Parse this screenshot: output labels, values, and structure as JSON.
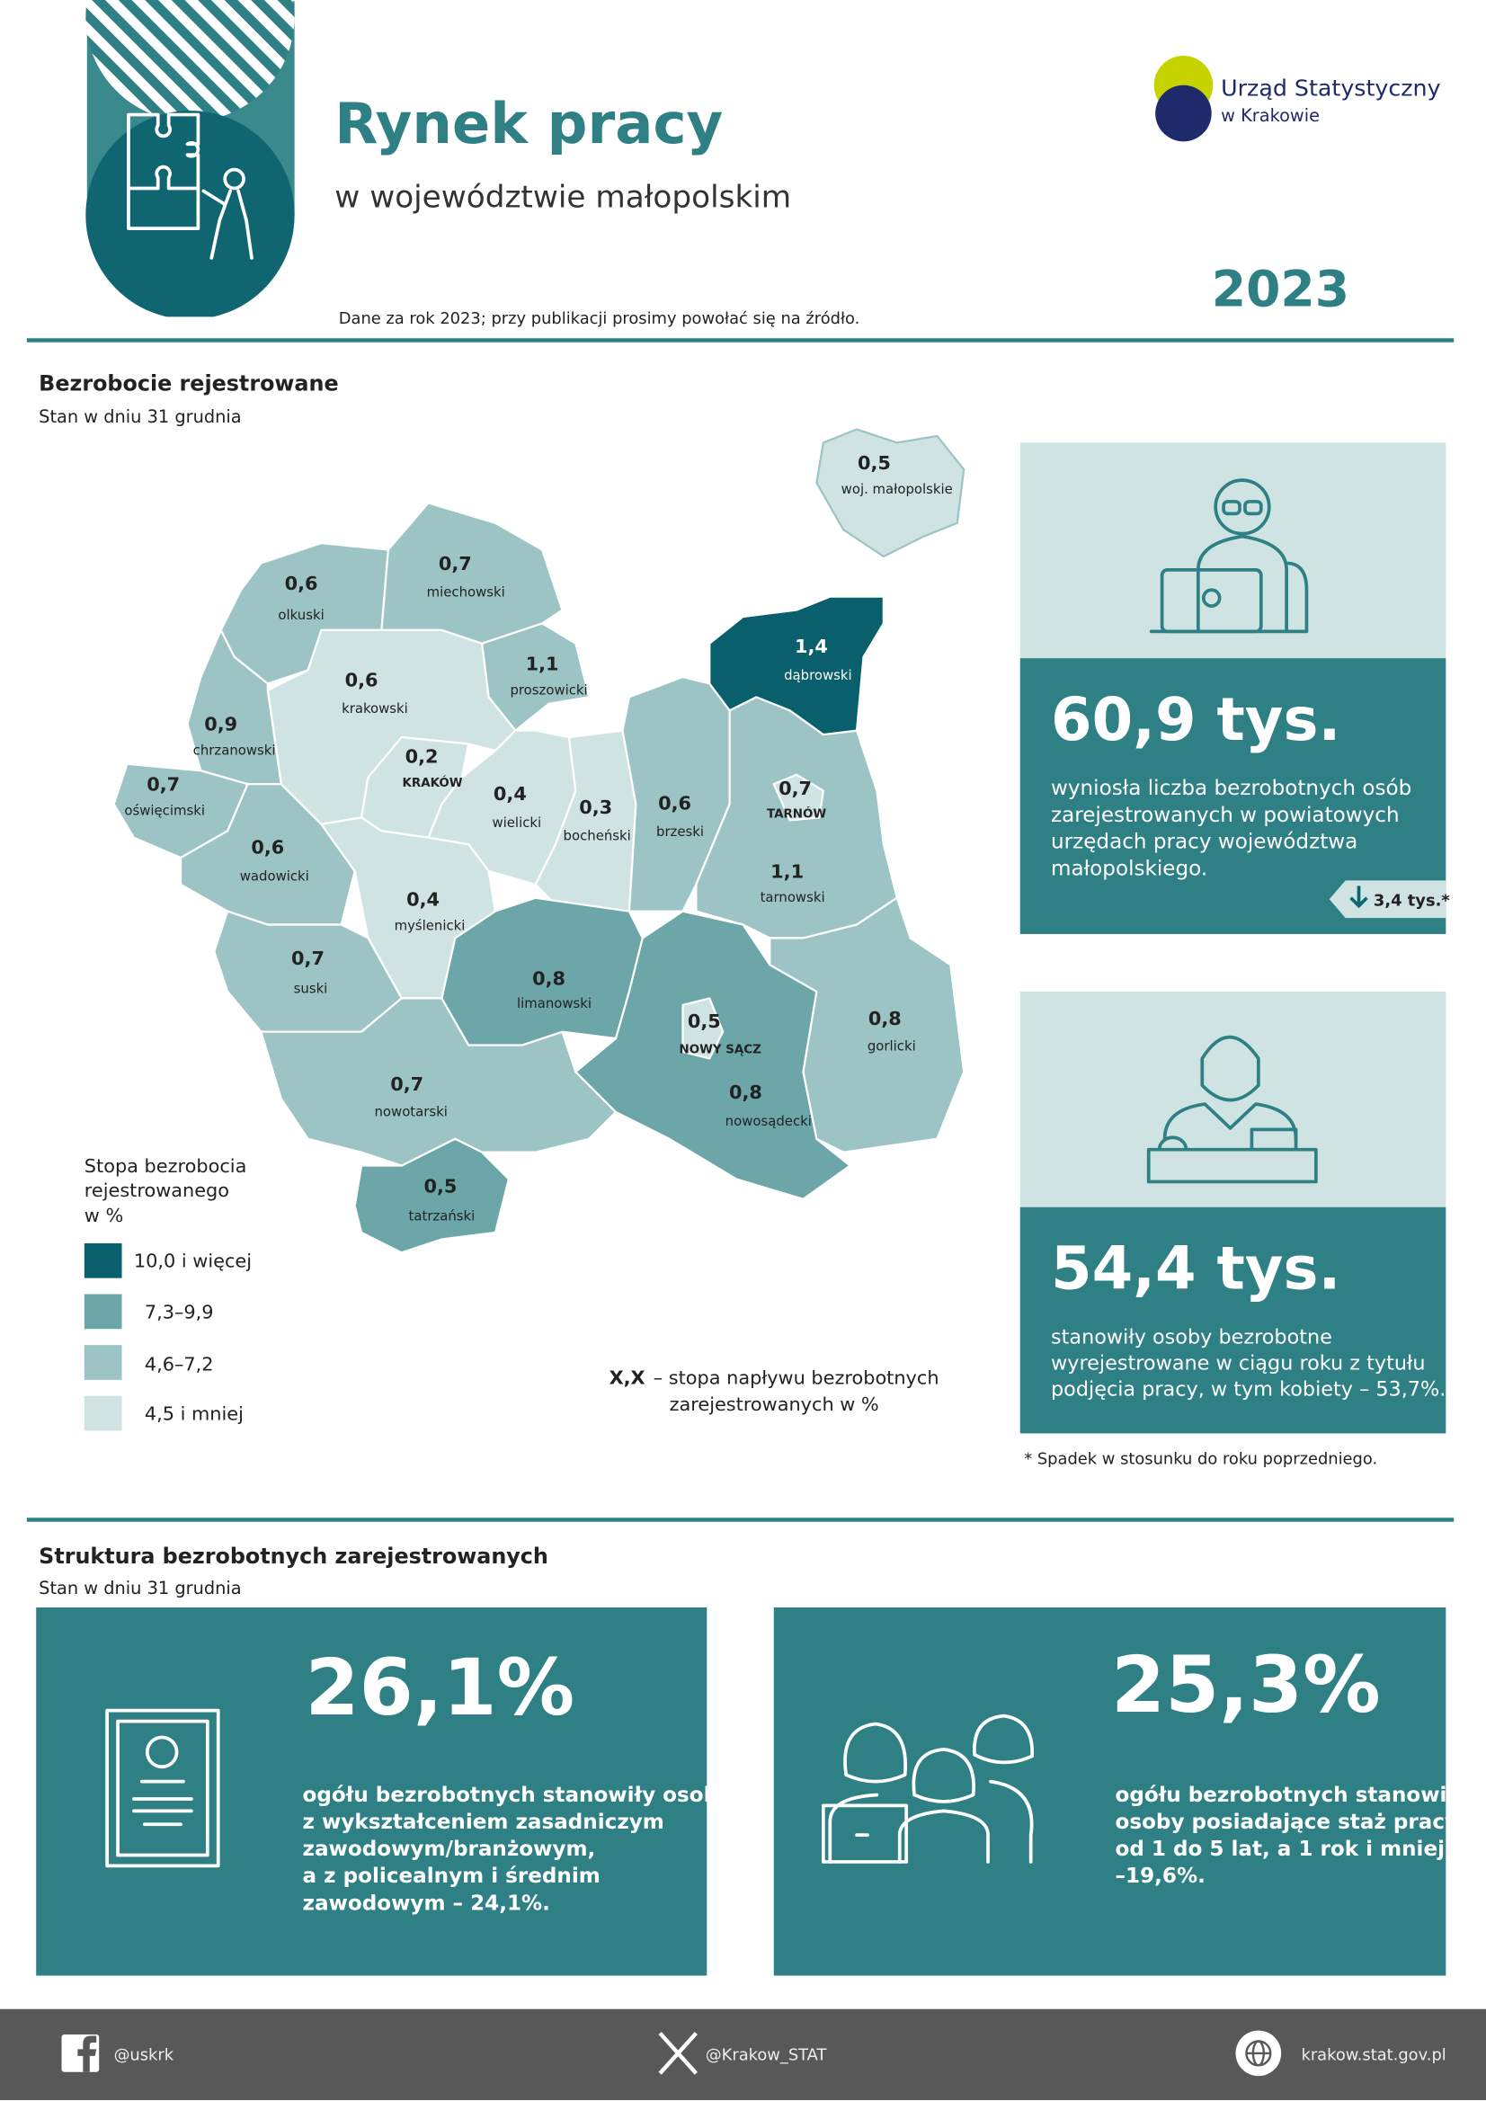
{
  "header": {
    "title": "Rynek pracy",
    "subtitle": "w województwie małopolskim",
    "year": "2023",
    "note": "Dane za rok 2023; przy publikacji prosimy powołać się na źródło.",
    "logo": [
      "Urząd Statystyczny",
      "w Krakowie"
    ]
  },
  "section1": {
    "title": "Bezrobocie rejestrowane",
    "subtitle": "Stan w dniu 31 grudnia",
    "map": {
      "regions": [
        {
          "value": "0,6",
          "name": "olkuski"
        },
        {
          "value": "0,7",
          "name": "miechowski"
        },
        {
          "value": "1,1",
          "name": "proszowicki"
        },
        {
          "value": "0,6",
          "name": "krakowski"
        },
        {
          "value": "0,9",
          "name": "chrzanowski"
        },
        {
          "value": "0,7",
          "name": "oświęcimski"
        },
        {
          "value": "0,6",
          "name": "wadowicki"
        },
        {
          "value": "0,2",
          "name": "KRAKÓW"
        },
        {
          "value": "0,4",
          "name": "wielicki"
        },
        {
          "value": "0,3",
          "name": "bocheński"
        },
        {
          "value": "0,6",
          "name": "brzeski"
        },
        {
          "value": "1,4",
          "name": "dąbrowski"
        },
        {
          "value": "1,1",
          "name": "tarnowski"
        },
        {
          "value": "0,7",
          "name": "TARNÓW"
        },
        {
          "value": "0,4",
          "name": "myślenicki"
        },
        {
          "value": "0,7",
          "name": "suski"
        },
        {
          "value": "0,8",
          "name": "limanowski"
        },
        {
          "value": "0,8",
          "name": "nowosądecki"
        },
        {
          "value": "0,5",
          "name": "NOWY SĄCZ"
        },
        {
          "value": "0,8",
          "name": "gorlicki"
        },
        {
          "value": "0,7",
          "name": "nowotarski"
        },
        {
          "value": "0,5",
          "name": "tatrzański"
        },
        {
          "value": "0,5",
          "name": "woj. małopolskie"
        }
      ]
    },
    "legend": {
      "title": [
        "Stopa bezrobocia",
        "rejestrowanego",
        "w %"
      ],
      "items": [
        "10,0 i więcej",
        "7,3–9,9",
        "4,6–7,2",
        "4,5 i mniej"
      ],
      "symbol": "X,X",
      "symbol_text": [
        "– stopa napływu bezrobotnych",
        "zarejestrowanych w %"
      ]
    },
    "panel1": {
      "value": "60,9 tys.",
      "text": [
        "wyniosła liczba bezrobotnych osób",
        "zarejestrowanych w powiatowych",
        "urzędach pracy województwa",
        "małopolskiego."
      ],
      "change": "3,4 tys.*"
    },
    "panel2": {
      "value": "54,4 tys.",
      "text": [
        "stanowiły osoby bezrobotne",
        "wyrejestrowane w ciągu roku z tytułu",
        "podjęcia pracy, w tym kobiety – 53,7%."
      ]
    },
    "footnote": "* Spadek w stosunku do roku poprzedniego."
  },
  "section2": {
    "title": "Struktura bezrobotnych zarejestrowanych",
    "subtitle": "Stan w dniu 31 grudnia",
    "box1": {
      "value": "26,1%",
      "text": [
        "ogółu bezrobotnych stanowiły osoby",
        "z wykształceniem zasadniczym",
        "zawodowym/branżowym,",
        "a z policealnym i średnim",
        "zawodowym – 24,1%."
      ]
    },
    "box2": {
      "value": "25,3%",
      "text": [
        "ogółu bezrobotnych stanowiły",
        "osoby posiadające staż pracy",
        "od 1 do 5 lat, a 1 rok i mniej",
        "–19,6%."
      ]
    }
  },
  "footer": {
    "facebook": "@uskrk",
    "x": "@Krakow_STAT",
    "web": "krakow.stat.gov.pl"
  }
}
